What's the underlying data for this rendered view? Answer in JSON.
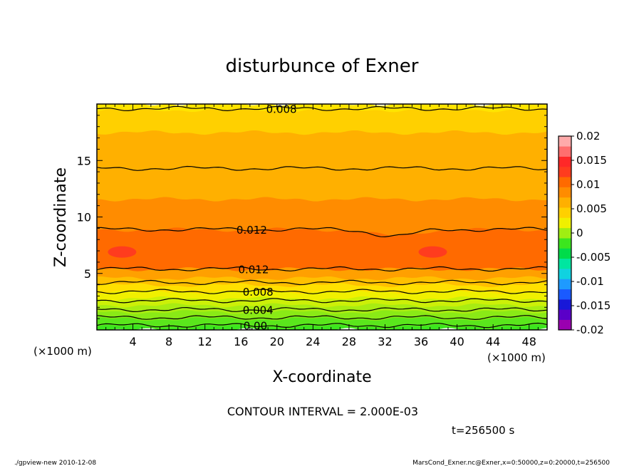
{
  "chart_data": {
    "type": "contour",
    "title": "disturbunce of Exner",
    "xlabel": "X-coordinate",
    "ylabel": "Z-coordinate",
    "x_unit": "(×1000 m)",
    "y_unit": "(×1000 m)",
    "xlim": [
      0,
      50
    ],
    "ylim": [
      0,
      20
    ],
    "x_ticks": [
      4,
      8,
      12,
      16,
      20,
      24,
      28,
      32,
      36,
      40,
      44,
      48
    ],
    "y_ticks": [
      5,
      10,
      15
    ],
    "colorbar": {
      "ticks": [
        "0.02",
        "0.015",
        "0.01",
        "0.005",
        "0",
        "-0.005",
        "-0.01",
        "-0.015",
        "-0.02"
      ],
      "range": [
        -0.02,
        0.02
      ],
      "colors": [
        "#9a00b0",
        "#5a00c8",
        "#1818d8",
        "#1a5aff",
        "#1e9aff",
        "#10d2e0",
        "#00e6a0",
        "#00dc4a",
        "#3ce61e",
        "#a0ee12",
        "#f0f000",
        "#ffd000",
        "#ffb000",
        "#ff8c00",
        "#ff6a00",
        "#ff3c1e",
        "#ff2828",
        "#ff6e6e",
        "#ffaaaa"
      ]
    },
    "contour_interval": "CONTOUR INTERVAL = 2.000E-03",
    "contour_labels": [
      {
        "text": "0.008",
        "x": 20.5,
        "z": 19.6
      },
      {
        "text": "0.012",
        "x": 17.2,
        "z": 8.9
      },
      {
        "text": "0.012",
        "x": 17.4,
        "z": 5.4
      },
      {
        "text": "0.008",
        "x": 17.9,
        "z": 3.4
      },
      {
        "text": "0.004",
        "x": 17.9,
        "z": 1.8
      },
      {
        "text": "0.00",
        "x": 17.6,
        "z": 0.4
      }
    ],
    "bands": [
      {
        "z0": 0.0,
        "z1": 0.3,
        "color": "#3ce61e"
      },
      {
        "z0": 0.3,
        "z1": 1.0,
        "color": "#5ae61c"
      },
      {
        "z0": 1.0,
        "z1": 1.6,
        "color": "#8aea16"
      },
      {
        "z0": 1.6,
        "z1": 2.2,
        "color": "#a8ec12"
      },
      {
        "z0": 2.2,
        "z1": 2.8,
        "color": "#ccf008"
      },
      {
        "z0": 2.8,
        "z1": 3.4,
        "color": "#f0f000"
      },
      {
        "z0": 3.4,
        "z1": 4.0,
        "color": "#ffe000"
      },
      {
        "z0": 4.0,
        "z1": 4.6,
        "color": "#ffc000"
      },
      {
        "z0": 4.6,
        "z1": 5.4,
        "color": "#ffa000"
      },
      {
        "z0": 5.4,
        "z1": 8.9,
        "color": "#ff6a00"
      },
      {
        "z0": 8.9,
        "z1": 11.6,
        "color": "#ff8c00"
      },
      {
        "z0": 11.6,
        "z1": 17.5,
        "color": "#ffb000"
      },
      {
        "z0": 17.5,
        "z1": 19.5,
        "color": "#ffd000"
      },
      {
        "z0": 19.5,
        "z1": 20.0,
        "color": "#ffe400"
      }
    ],
    "contours_z": [
      0.4,
      1.1,
      1.8,
      2.6,
      3.4,
      4.2,
      5.4,
      8.9,
      14.3,
      19.6
    ],
    "max_spots": [
      {
        "x": 2.8,
        "z": 6.9
      },
      {
        "x": 37.3,
        "z": 6.9
      }
    ],
    "max_spot_color": "#ff3c1e"
  },
  "time_label": "t=256500 s",
  "footer": {
    "left": "./gpview-new  2010-12-08",
    "right": "MarsCond_Exner.nc@Exner,x=0:50000,z=0:20000,t=256500"
  }
}
